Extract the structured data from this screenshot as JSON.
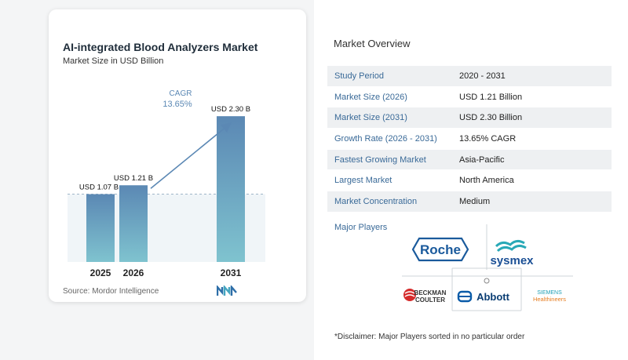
{
  "chart_data": {
    "type": "bar",
    "title": "AI-integrated Blood Analyzers Market",
    "subtitle": "Market Size in USD Billion",
    "categories": [
      "2025",
      "2026",
      "2031"
    ],
    "values": [
      1.07,
      1.21,
      2.3
    ],
    "data_labels": [
      "USD 1.07 B",
      "USD 1.21 B",
      "USD 2.30 B"
    ],
    "ylim": [
      0,
      2.5
    ],
    "annotation": {
      "label": "CAGR",
      "value": "13.65%"
    },
    "grid": false,
    "bar_color_top": "#5b88b4",
    "bar_color_bottom": "#7fc3cf"
  },
  "source": "Source:  Mordor Intelligence",
  "overview": {
    "title": "Market Overview",
    "rows": [
      {
        "label": "Study Period",
        "value": "2020 - 2031"
      },
      {
        "label": "Market Size (2026)",
        "value": "USD 1.21 Billion"
      },
      {
        "label": "Market Size (2031)",
        "value": "USD 2.30 Billion"
      },
      {
        "label": "Growth Rate (2026 - 2031)",
        "value": "13.65% CAGR"
      },
      {
        "label": "Fastest Growing Market",
        "value": "Asia-Pacific"
      },
      {
        "label": "Largest Market",
        "value": "North America"
      },
      {
        "label": "Market Concentration",
        "value": "Medium"
      }
    ]
  },
  "players": {
    "label": "Major Players",
    "logos": {
      "roche": "Roche",
      "sysmex": "sysmex",
      "beckman_line1": "BECKMAN",
      "beckman_line2": "COULTER",
      "abbott": "Abbott",
      "siemens_line1": "SIEMENS",
      "siemens_line2": "Healthineers"
    }
  },
  "disclaimer": "*Disclaimer: Major Players sorted in no particular order"
}
